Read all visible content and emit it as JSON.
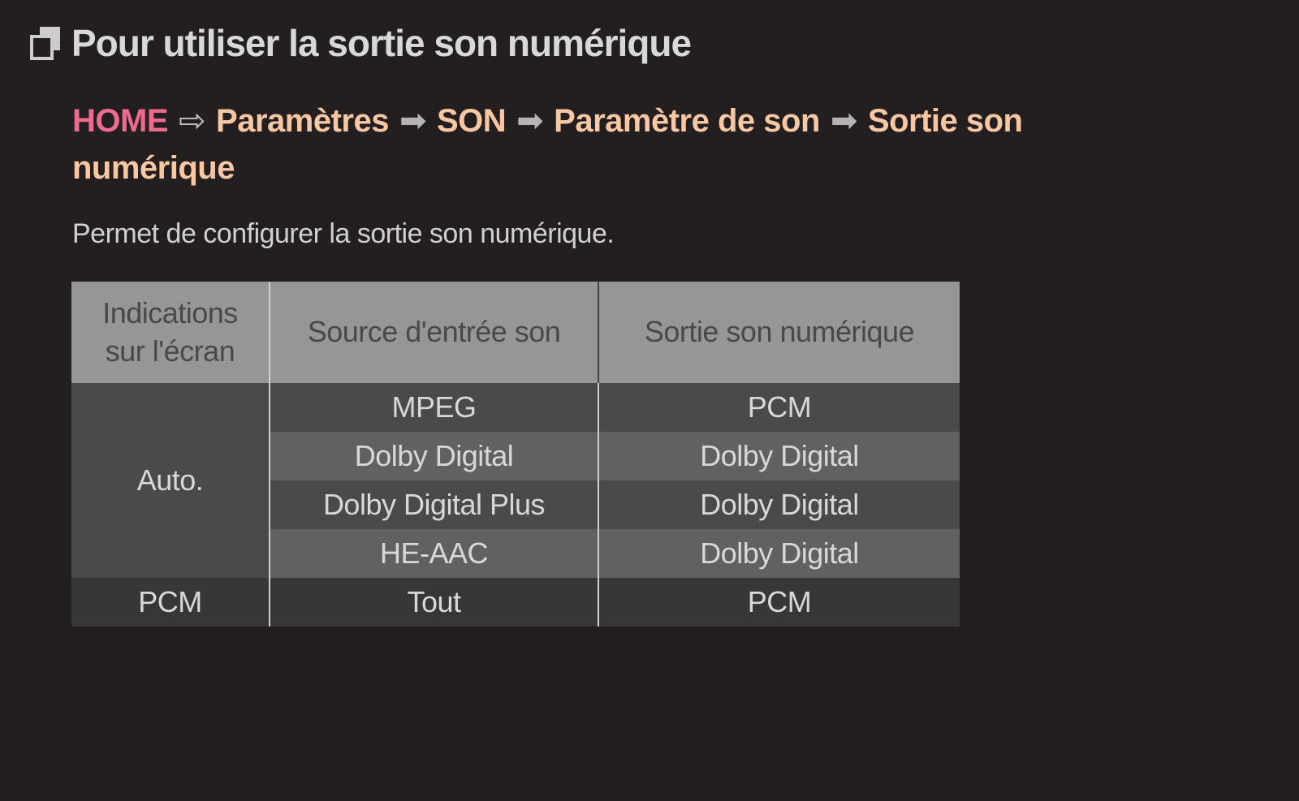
{
  "theme": {
    "page-bg": "#231f20",
    "title-text": "#d9d7d8",
    "home-pink": "#ee6b8e",
    "breadcrumb-peach": "#f8c7a4",
    "arrow-gray": "#b5b3b4",
    "hollow-arrow": "#c3c1c2",
    "description-text": "#d2d0d1",
    "header-bg": "#979596",
    "header-text": "#4a4849",
    "cell-text": "#d9d7d8",
    "row-dark": "#4c494a",
    "row-light": "#626061",
    "row-darkest": "#393637",
    "divider-light": "#cfcdce",
    "divider-dark": "#434142",
    "icon-gray": "#cecccd"
  },
  "title": {
    "icon": "overlapping-squares-icon",
    "text": "Pour utiliser la sortie son numérique"
  },
  "breadcrumb": {
    "home": "HOME",
    "hollow_arrow": "⇨",
    "solid_arrow": "➡",
    "items": [
      "Paramètres",
      "SON",
      "Paramètre de son",
      "Sortie son numérique"
    ]
  },
  "description": "Permet de configurer la sortie son numérique.",
  "table": {
    "columns": [
      "Indications sur l'écran",
      "Source d'entrée son",
      "Sortie son numérique"
    ],
    "groups": [
      {
        "indication": "Auto.",
        "mappings": [
          {
            "source": "MPEG",
            "output": "PCM"
          },
          {
            "source": "Dolby Digital",
            "output": "Dolby Digital"
          },
          {
            "source": "Dolby Digital Plus",
            "output": "Dolby Digital"
          },
          {
            "source": "HE-AAC",
            "output": "Dolby Digital"
          }
        ]
      },
      {
        "indication": "PCM",
        "mappings": [
          {
            "source": "Tout",
            "output": "PCM"
          }
        ]
      }
    ]
  }
}
